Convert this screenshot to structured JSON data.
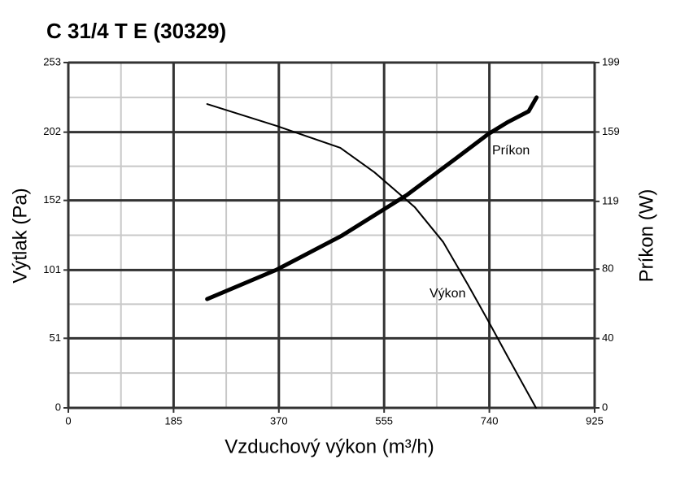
{
  "chart_data": {
    "type": "line",
    "title": "C 31/4 T E (30329)",
    "x_label": "Vzduchový výkon (m³/h)",
    "y_label": "Výtlak (Pa)",
    "y2_label": "Príkon (W)",
    "xlim": [
      0,
      925
    ],
    "xticks": [
      0,
      185,
      370,
      555,
      740,
      925
    ],
    "ylim": [
      0,
      253
    ],
    "yticks": [
      0,
      51,
      101,
      152,
      202,
      253
    ],
    "y2lim": [
      0,
      199
    ],
    "y2ticks": [
      0,
      40,
      80,
      119,
      159,
      199
    ],
    "grid": true,
    "series": [
      {
        "name": "Výkon",
        "color": "#000000",
        "x": [
          244,
          366,
          478,
          538,
          609,
          659,
          702,
          738,
          773,
          822
        ],
        "values": [
          222.6,
          206.6,
          190.5,
          172.6,
          147,
          121.4,
          90.5,
          63.7,
          36.9,
          0
        ]
      },
      {
        "name": "Príkon",
        "color": "#000000",
        "axis": "y2",
        "x": [
          244,
          366,
          481,
          595,
          681,
          738,
          773,
          809,
          823
        ],
        "values": [
          62.7,
          79.6,
          99.3,
          122.7,
          143.7,
          157.8,
          164.8,
          170.9,
          178.9
        ]
      }
    ]
  }
}
